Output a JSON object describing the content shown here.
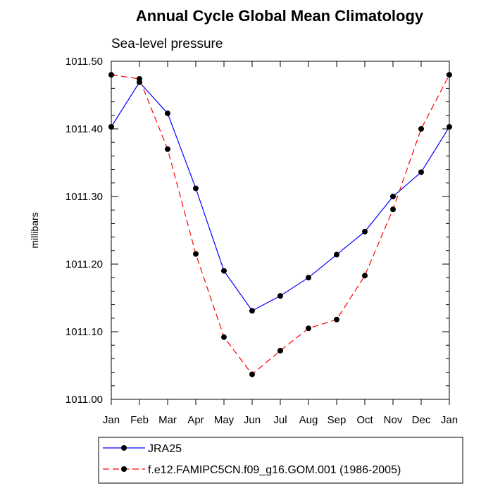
{
  "chart_data": {
    "type": "line",
    "title": "Annual Cycle Global Mean Climatology",
    "subtitle": "Sea-level pressure",
    "xlabel": "",
    "ylabel": "millibars",
    "categories": [
      "Jan",
      "Feb",
      "Mar",
      "Apr",
      "May",
      "Jun",
      "Jul",
      "Aug",
      "Sep",
      "Oct",
      "Nov",
      "Dec",
      "Jan"
    ],
    "ylim": [
      1011.0,
      1011.5
    ],
    "yticks": [
      1011.0,
      1011.1,
      1011.2,
      1011.3,
      1011.4,
      1011.5
    ],
    "ytick_labels": [
      "1011.00",
      "1011.10",
      "1011.20",
      "1011.30",
      "1011.40",
      "1011.50"
    ],
    "grid": false,
    "legend_position": "bottom",
    "series": [
      {
        "name": "JRA25",
        "color": "#0000ff",
        "dash": "solid",
        "values": [
          1011.403,
          1011.469,
          1011.423,
          1011.312,
          1011.19,
          1011.131,
          1011.153,
          1011.18,
          1011.214,
          1011.248,
          1011.3,
          1011.336,
          1011.403
        ]
      },
      {
        "name": "f.e12.FAMIPC5CN.f09_g16.GOM.001 (1986-2005)",
        "color": "#ff0000",
        "dash": "dashed",
        "values": [
          1011.48,
          1011.474,
          1011.37,
          1011.215,
          1011.092,
          1011.037,
          1011.072,
          1011.105,
          1011.118,
          1011.183,
          1011.281,
          1011.4,
          1011.48
        ]
      }
    ]
  }
}
